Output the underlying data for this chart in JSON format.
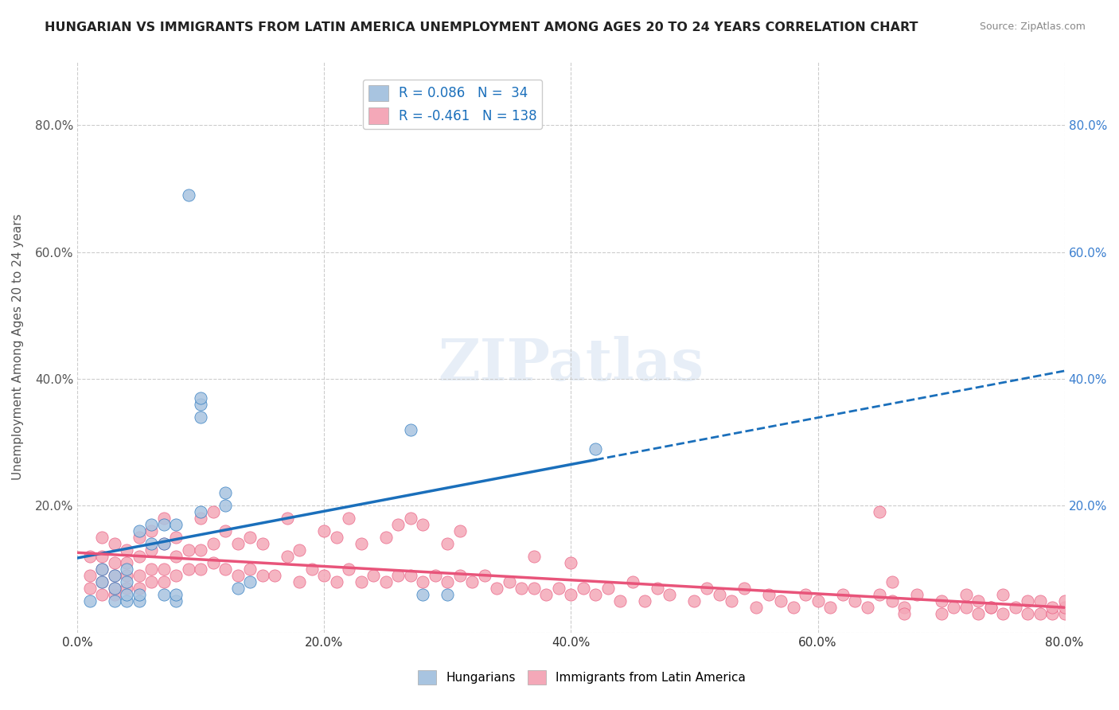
{
  "title": "HUNGARIAN VS IMMIGRANTS FROM LATIN AMERICA UNEMPLOYMENT AMONG AGES 20 TO 24 YEARS CORRELATION CHART",
  "source": "Source: ZipAtlas.com",
  "ylabel": "Unemployment Among Ages 20 to 24 years",
  "xlabel": "",
  "xlim": [
    0.0,
    0.8
  ],
  "ylim": [
    0.0,
    0.9
  ],
  "yticks": [
    0.0,
    0.2,
    0.4,
    0.6,
    0.8
  ],
  "xticks": [
    0.0,
    0.2,
    0.4,
    0.6,
    0.8
  ],
  "yticklabels": [
    "",
    "20.0%",
    "40.0%",
    "60.0%",
    "80.0%"
  ],
  "xticklabels": [
    "0.0%",
    "20.0%",
    "40.0%",
    "60.0%",
    "80.0%"
  ],
  "right_yticklabels": [
    "20.0%",
    "40.0%",
    "60.0%",
    "80.0%"
  ],
  "right_yticks": [
    0.2,
    0.4,
    0.6,
    0.8
  ],
  "hungarian_color": "#a8c4e0",
  "latin_color": "#f4a8b8",
  "hungarian_line_color": "#1a6fbb",
  "latin_line_color": "#e8547a",
  "hungarian_R": 0.086,
  "hungarian_N": 34,
  "latin_R": -0.461,
  "latin_N": 138,
  "grid_color": "#cccccc",
  "watermark": "ZIPatlas",
  "background_color": "#ffffff",
  "hungarian_scatter_x": [
    0.01,
    0.02,
    0.02,
    0.03,
    0.03,
    0.03,
    0.04,
    0.04,
    0.04,
    0.04,
    0.05,
    0.05,
    0.05,
    0.06,
    0.06,
    0.07,
    0.07,
    0.07,
    0.08,
    0.08,
    0.08,
    0.09,
    0.1,
    0.1,
    0.1,
    0.1,
    0.12,
    0.12,
    0.13,
    0.14,
    0.27,
    0.28,
    0.3,
    0.42
  ],
  "hungarian_scatter_y": [
    0.05,
    0.08,
    0.1,
    0.05,
    0.07,
    0.09,
    0.05,
    0.06,
    0.08,
    0.1,
    0.05,
    0.06,
    0.16,
    0.14,
    0.17,
    0.06,
    0.14,
    0.17,
    0.05,
    0.06,
    0.17,
    0.69,
    0.34,
    0.36,
    0.19,
    0.37,
    0.2,
    0.22,
    0.07,
    0.08,
    0.32,
    0.06,
    0.06,
    0.29
  ],
  "latin_scatter_x": [
    0.01,
    0.01,
    0.01,
    0.02,
    0.02,
    0.02,
    0.02,
    0.02,
    0.03,
    0.03,
    0.03,
    0.03,
    0.03,
    0.04,
    0.04,
    0.04,
    0.04,
    0.05,
    0.05,
    0.05,
    0.05,
    0.06,
    0.06,
    0.06,
    0.06,
    0.07,
    0.07,
    0.07,
    0.07,
    0.08,
    0.08,
    0.08,
    0.09,
    0.09,
    0.1,
    0.1,
    0.1,
    0.11,
    0.11,
    0.11,
    0.12,
    0.12,
    0.13,
    0.13,
    0.14,
    0.14,
    0.15,
    0.15,
    0.16,
    0.17,
    0.17,
    0.18,
    0.18,
    0.19,
    0.2,
    0.2,
    0.21,
    0.21,
    0.22,
    0.22,
    0.23,
    0.23,
    0.24,
    0.25,
    0.25,
    0.26,
    0.26,
    0.27,
    0.27,
    0.28,
    0.28,
    0.29,
    0.3,
    0.3,
    0.31,
    0.31,
    0.32,
    0.33,
    0.34,
    0.35,
    0.36,
    0.37,
    0.37,
    0.38,
    0.39,
    0.4,
    0.4,
    0.41,
    0.42,
    0.43,
    0.44,
    0.45,
    0.46,
    0.47,
    0.48,
    0.5,
    0.51,
    0.52,
    0.53,
    0.54,
    0.55,
    0.56,
    0.57,
    0.58,
    0.59,
    0.6,
    0.61,
    0.62,
    0.63,
    0.64,
    0.65,
    0.66,
    0.67,
    0.68,
    0.7,
    0.71,
    0.72,
    0.73,
    0.74,
    0.75,
    0.65,
    0.66,
    0.67,
    0.7,
    0.72,
    0.73,
    0.74,
    0.75,
    0.76,
    0.77,
    0.77,
    0.78,
    0.78,
    0.79,
    0.79,
    0.8,
    0.8,
    0.8
  ],
  "latin_scatter_y": [
    0.07,
    0.09,
    0.12,
    0.06,
    0.08,
    0.1,
    0.12,
    0.15,
    0.06,
    0.07,
    0.09,
    0.11,
    0.14,
    0.07,
    0.09,
    0.11,
    0.13,
    0.07,
    0.09,
    0.12,
    0.15,
    0.08,
    0.1,
    0.13,
    0.16,
    0.08,
    0.1,
    0.14,
    0.18,
    0.09,
    0.12,
    0.15,
    0.1,
    0.13,
    0.1,
    0.13,
    0.18,
    0.11,
    0.14,
    0.19,
    0.1,
    0.16,
    0.09,
    0.14,
    0.1,
    0.15,
    0.09,
    0.14,
    0.09,
    0.12,
    0.18,
    0.08,
    0.13,
    0.1,
    0.09,
    0.16,
    0.08,
    0.15,
    0.1,
    0.18,
    0.08,
    0.14,
    0.09,
    0.08,
    0.15,
    0.09,
    0.17,
    0.09,
    0.18,
    0.08,
    0.17,
    0.09,
    0.08,
    0.14,
    0.09,
    0.16,
    0.08,
    0.09,
    0.07,
    0.08,
    0.07,
    0.07,
    0.12,
    0.06,
    0.07,
    0.06,
    0.11,
    0.07,
    0.06,
    0.07,
    0.05,
    0.08,
    0.05,
    0.07,
    0.06,
    0.05,
    0.07,
    0.06,
    0.05,
    0.07,
    0.04,
    0.06,
    0.05,
    0.04,
    0.06,
    0.05,
    0.04,
    0.06,
    0.05,
    0.04,
    0.06,
    0.05,
    0.04,
    0.06,
    0.05,
    0.04,
    0.06,
    0.05,
    0.04,
    0.06,
    0.19,
    0.08,
    0.03,
    0.03,
    0.04,
    0.03,
    0.04,
    0.03,
    0.04,
    0.03,
    0.05,
    0.03,
    0.05,
    0.03,
    0.04,
    0.03,
    0.04,
    0.05
  ]
}
